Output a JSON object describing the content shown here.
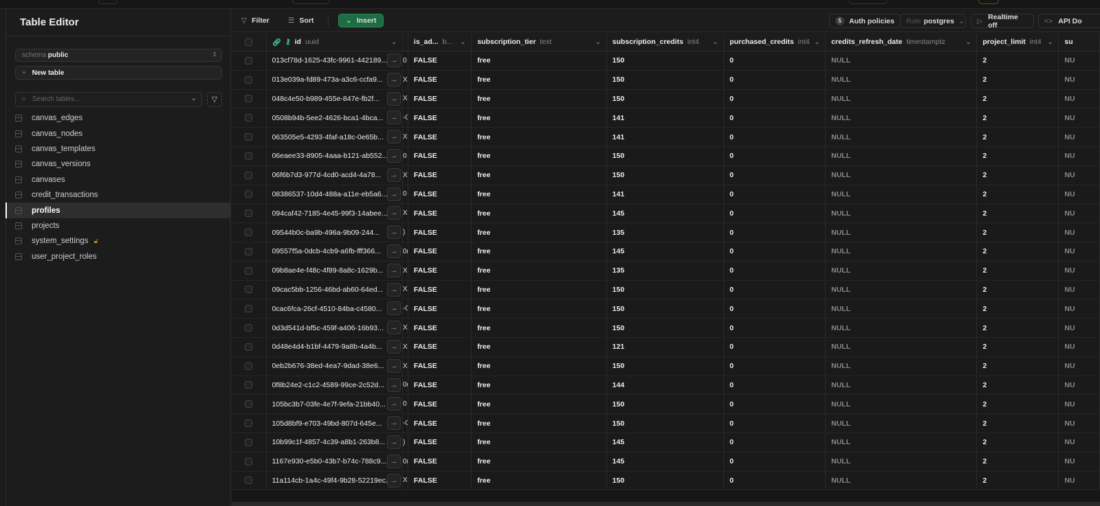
{
  "sidebar": {
    "title": "Table Editor",
    "schema_label": "schema",
    "schema_value": "public",
    "new_table": "New table",
    "search_placeholder": "Search tables...",
    "tables": [
      {
        "name": "canvas_edges"
      },
      {
        "name": "canvas_nodes"
      },
      {
        "name": "canvas_templates"
      },
      {
        "name": "canvas_versions"
      },
      {
        "name": "canvases"
      },
      {
        "name": "credit_transactions"
      },
      {
        "name": "profiles",
        "active": true
      },
      {
        "name": "projects"
      },
      {
        "name": "system_settings",
        "locked": true
      },
      {
        "name": "user_project_roles"
      }
    ]
  },
  "toolbar": {
    "filter": "Filter",
    "sort": "Sort",
    "insert": "Insert",
    "auth_count": "5",
    "auth_policies": "Auth policies",
    "role_label": "Role",
    "role_value": "postgres",
    "realtime": "Realtime off",
    "api_docs": "API Do"
  },
  "columns": [
    {
      "name": "id",
      "type": "uuid"
    },
    {
      "name": "",
      "type": ""
    },
    {
      "name": "is_ad...",
      "type": "b..."
    },
    {
      "name": "subscription_tier",
      "type": "text"
    },
    {
      "name": "subscription_credits",
      "type": "int4"
    },
    {
      "name": "purchased_credits",
      "type": "int4"
    },
    {
      "name": "credits_refresh_date",
      "type": "timestamptz"
    },
    {
      "name": "project_limit",
      "type": "int4"
    },
    {
      "name": "su",
      "type": ""
    }
  ],
  "rows": [
    {
      "id": "013cf78d-1625-43fc-9961-442189...",
      "frag": "0",
      "is_admin": "FALSE",
      "tier": "free",
      "credits": "150",
      "purchased": "0",
      "refresh": "NULL",
      "limit": "2",
      "su": "NU"
    },
    {
      "id": "013e039a-fd89-473a-a3c6-ccfa9...",
      "frag": "X",
      "is_admin": "FALSE",
      "tier": "free",
      "credits": "150",
      "purchased": "0",
      "refresh": "NULL",
      "limit": "2",
      "su": "NU"
    },
    {
      "id": "048c4e50-b989-455e-847e-fb2f...",
      "frag": "X",
      "is_admin": "FALSE",
      "tier": "free",
      "credits": "150",
      "purchased": "0",
      "refresh": "NULL",
      "limit": "2",
      "su": "NU"
    },
    {
      "id": "0508b94b-5ee2-4626-bca1-4bca...",
      "frag": "-0",
      "is_admin": "FALSE",
      "tier": "free",
      "credits": "141",
      "purchased": "0",
      "refresh": "NULL",
      "limit": "2",
      "su": "NU"
    },
    {
      "id": "063505e5-4293-4faf-a18c-0e65b...",
      "frag": "X",
      "is_admin": "FALSE",
      "tier": "free",
      "credits": "141",
      "purchased": "0",
      "refresh": "NULL",
      "limit": "2",
      "su": "NU"
    },
    {
      "id": "06eaee33-8905-4aaa-b121-ab552...",
      "frag": "0",
      "is_admin": "FALSE",
      "tier": "free",
      "credits": "150",
      "purchased": "0",
      "refresh": "NULL",
      "limit": "2",
      "su": "NU"
    },
    {
      "id": "06f6b7d3-977d-4cd0-acd4-4a78...",
      "frag": "X",
      "is_admin": "FALSE",
      "tier": "free",
      "credits": "150",
      "purchased": "0",
      "refresh": "NULL",
      "limit": "2",
      "su": "NU"
    },
    {
      "id": "08386537-10d4-488a-a11e-eb5a6...",
      "frag": "0",
      "is_admin": "FALSE",
      "tier": "free",
      "credits": "141",
      "purchased": "0",
      "refresh": "NULL",
      "limit": "2",
      "su": "NU"
    },
    {
      "id": "094caf42-7185-4e45-99f3-14abee...",
      "frag": "X",
      "is_admin": "FALSE",
      "tier": "free",
      "credits": "145",
      "purchased": "0",
      "refresh": "NULL",
      "limit": "2",
      "su": "NU"
    },
    {
      "id": "09544b0c-ba9b-496a-9b09-244...",
      "frag": ")",
      "is_admin": "FALSE",
      "tier": "free",
      "credits": "135",
      "purchased": "0",
      "refresh": "NULL",
      "limit": "2",
      "su": "NU"
    },
    {
      "id": "09557f5a-0dcb-4cb9-a6fb-fff366...",
      "frag": "0(",
      "is_admin": "FALSE",
      "tier": "free",
      "credits": "145",
      "purchased": "0",
      "refresh": "NULL",
      "limit": "2",
      "su": "NU"
    },
    {
      "id": "09b8ae4e-f48c-4f89-8a8c-1629b...",
      "frag": "X",
      "is_admin": "FALSE",
      "tier": "free",
      "credits": "135",
      "purchased": "0",
      "refresh": "NULL",
      "limit": "2",
      "su": "NU"
    },
    {
      "id": "09cac5bb-1256-46bd-ab60-64ed...",
      "frag": "X",
      "is_admin": "FALSE",
      "tier": "free",
      "credits": "150",
      "purchased": "0",
      "refresh": "NULL",
      "limit": "2",
      "su": "NU"
    },
    {
      "id": "0cac6fca-26cf-4510-84ba-c4580...",
      "frag": "-0",
      "is_admin": "FALSE",
      "tier": "free",
      "credits": "150",
      "purchased": "0",
      "refresh": "NULL",
      "limit": "2",
      "su": "NU"
    },
    {
      "id": "0d3d541d-bf5c-459f-a406-16b93...",
      "frag": "X",
      "is_admin": "FALSE",
      "tier": "free",
      "credits": "150",
      "purchased": "0",
      "refresh": "NULL",
      "limit": "2",
      "su": "NU"
    },
    {
      "id": "0d48e4d4-b1bf-4479-9a8b-4a4b...",
      "frag": "X",
      "is_admin": "FALSE",
      "tier": "free",
      "credits": "121",
      "purchased": "0",
      "refresh": "NULL",
      "limit": "2",
      "su": "NU"
    },
    {
      "id": "0eb2b676-38ed-4ea7-9dad-38e6...",
      "frag": "X",
      "is_admin": "FALSE",
      "tier": "free",
      "credits": "150",
      "purchased": "0",
      "refresh": "NULL",
      "limit": "2",
      "su": "NU"
    },
    {
      "id": "0f8b24e2-c1c2-4589-99ce-2c52d...",
      "frag": "0(",
      "is_admin": "FALSE",
      "tier": "free",
      "credits": "144",
      "purchased": "0",
      "refresh": "NULL",
      "limit": "2",
      "su": "NU"
    },
    {
      "id": "105bc3b7-03fe-4e7f-9efa-21bb40...",
      "frag": "0",
      "is_admin": "FALSE",
      "tier": "free",
      "credits": "150",
      "purchased": "0",
      "refresh": "NULL",
      "limit": "2",
      "su": "NU"
    },
    {
      "id": "105d8bf9-e703-49bd-807d-645e...",
      "frag": "-0",
      "is_admin": "FALSE",
      "tier": "free",
      "credits": "150",
      "purchased": "0",
      "refresh": "NULL",
      "limit": "2",
      "su": "NU"
    },
    {
      "id": "10b99c1f-4857-4c39-a8b1-263b8...",
      "frag": ")",
      "is_admin": "FALSE",
      "tier": "free",
      "credits": "145",
      "purchased": "0",
      "refresh": "NULL",
      "limit": "2",
      "su": "NU"
    },
    {
      "id": "1167e930-e5b0-43b7-b74c-788c9...",
      "frag": "0(",
      "is_admin": "FALSE",
      "tier": "free",
      "credits": "145",
      "purchased": "0",
      "refresh": "NULL",
      "limit": "2",
      "su": "NU"
    },
    {
      "id": "11a114cb-1a4c-49f4-9b28-52219ec...",
      "frag": "X",
      "is_admin": "FALSE",
      "tier": "free",
      "credits": "150",
      "purchased": "0",
      "refresh": "NULL",
      "limit": "2",
      "su": "NU"
    }
  ],
  "colors": {
    "accent": "#3ecf8e",
    "insert_bg": "#1f6b43",
    "lock": "#c28a2a"
  }
}
